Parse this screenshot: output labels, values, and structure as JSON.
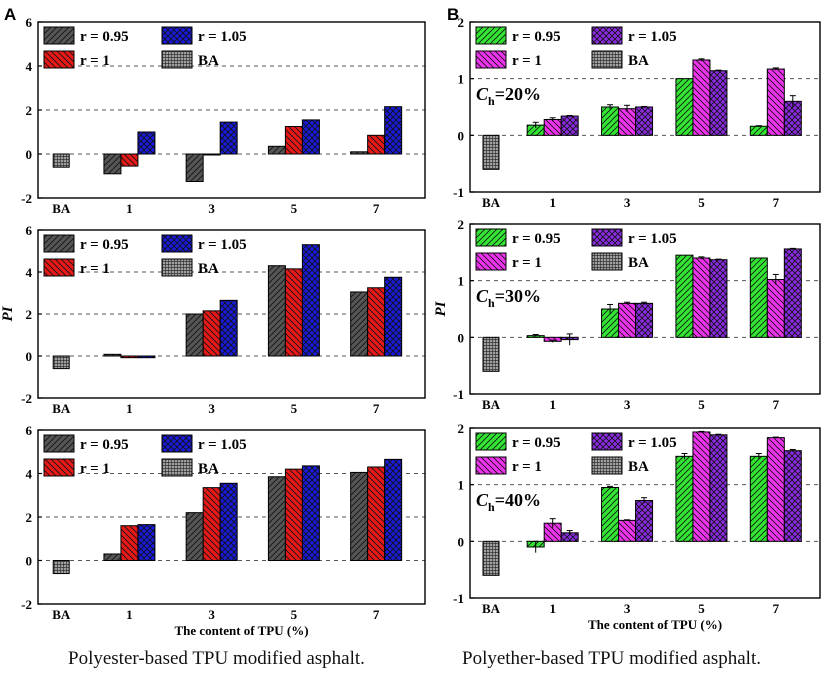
{
  "panel_letters": {
    "left": "A",
    "right": "B"
  },
  "captions": {
    "left": "Polyester-based TPU modified asphalt.",
    "right": "Polyether-based TPU modified asphalt."
  },
  "colors": {
    "r095_left": "#555555",
    "r1_left": "#e61919",
    "r105_left": "#1a1adc",
    "r095_right": "#33e533",
    "r1_right": "#ee33ee",
    "r105_right": "#8a2be2",
    "ba": "#a0a0a0"
  },
  "chart_data": [
    {
      "id": "A1",
      "type": "bar",
      "panel": "A",
      "ylabel": "",
      "xlabel": "",
      "ylim": [
        -2,
        6
      ],
      "yticks": [
        "-2",
        "0",
        "2",
        "4",
        "6"
      ],
      "gridlines": [
        0,
        2,
        4
      ],
      "categories": [
        "BA",
        "1",
        "3",
        "5",
        "7"
      ],
      "ba_value": -0.6,
      "series": [
        {
          "name": "r = 0.95",
          "values": [
            null,
            -0.9,
            -1.25,
            0.35,
            0.1
          ]
        },
        {
          "name": "r = 1",
          "values": [
            null,
            -0.55,
            0.0,
            1.25,
            0.85
          ]
        },
        {
          "name": "r = 1.05",
          "values": [
            null,
            1.0,
            1.45,
            1.55,
            2.15
          ]
        }
      ],
      "legend": [
        "r = 0.95",
        "r = 1.05",
        "r = 1",
        "BA"
      ],
      "annotation": ""
    },
    {
      "id": "A2",
      "type": "bar",
      "panel": "A",
      "ylabel": "PI",
      "xlabel": "",
      "ylim": [
        -2,
        6
      ],
      "yticks": [
        "-2",
        "0",
        "2",
        "4",
        "6"
      ],
      "gridlines": [
        0,
        2,
        4
      ],
      "categories": [
        "BA",
        "1",
        "3",
        "5",
        "7"
      ],
      "ba_value": -0.6,
      "series": [
        {
          "name": "r = 0.95",
          "values": [
            null,
            0.08,
            2.0,
            4.3,
            3.05
          ]
        },
        {
          "name": "r = 1",
          "values": [
            null,
            -0.08,
            2.15,
            4.15,
            3.25
          ]
        },
        {
          "name": "r = 1.05",
          "values": [
            null,
            -0.08,
            2.65,
            5.3,
            3.75
          ]
        }
      ],
      "legend": [
        "r = 0.95",
        "r = 1.05",
        "r = 1",
        "BA"
      ],
      "annotation": ""
    },
    {
      "id": "A3",
      "type": "bar",
      "panel": "A",
      "ylabel": "",
      "xlabel": "The content of TPU  (%)",
      "ylim": [
        -2,
        6
      ],
      "yticks": [
        "-2",
        "0",
        "2",
        "4",
        "6"
      ],
      "gridlines": [
        0,
        2,
        4
      ],
      "categories": [
        "BA",
        "1",
        "3",
        "5",
        "7"
      ],
      "ba_value": -0.6,
      "series": [
        {
          "name": "r = 0.95",
          "values": [
            null,
            0.3,
            2.2,
            3.85,
            4.05
          ]
        },
        {
          "name": "r = 1",
          "values": [
            null,
            1.6,
            3.35,
            4.2,
            4.3
          ]
        },
        {
          "name": "r = 1.05",
          "values": [
            null,
            1.65,
            3.55,
            4.35,
            4.65
          ]
        }
      ],
      "legend": [
        "r = 0.95",
        "r = 1.05",
        "r = 1",
        "BA"
      ],
      "annotation": ""
    },
    {
      "id": "B1",
      "type": "bar",
      "panel": "B",
      "ylabel": "",
      "xlabel": "",
      "ylim": [
        -1,
        2
      ],
      "yticks": [
        "-1",
        "0",
        "1",
        "2"
      ],
      "gridlines": [
        0,
        1
      ],
      "categories": [
        "BA",
        "1",
        "3",
        "5",
        "7"
      ],
      "ba_value": -0.6,
      "series": [
        {
          "name": "r = 0.95",
          "values": [
            null,
            0.18,
            0.5,
            1.0,
            0.16
          ],
          "errors": [
            null,
            0.05,
            0.04,
            0,
            0.01
          ]
        },
        {
          "name": "r = 1",
          "values": [
            null,
            0.28,
            0.47,
            1.33,
            1.17
          ],
          "errors": [
            null,
            0.03,
            0.06,
            0.02,
            0.02
          ]
        },
        {
          "name": "r = 1.05",
          "values": [
            null,
            0.34,
            0.5,
            1.14,
            0.6
          ],
          "errors": [
            null,
            0.01,
            0.01,
            0.01,
            0.1
          ]
        }
      ],
      "legend": [
        "r = 0.95",
        "r = 1.05",
        "r = 1",
        "BA"
      ],
      "annotation": {
        "main": "C",
        "sub": "h",
        "rest": "=20%"
      }
    },
    {
      "id": "B2",
      "type": "bar",
      "panel": "B",
      "ylabel": "PI",
      "xlabel": "",
      "ylim": [
        -1,
        2
      ],
      "yticks": [
        "-1",
        "0",
        "1",
        "2"
      ],
      "gridlines": [
        0,
        1
      ],
      "categories": [
        "BA",
        "1",
        "3",
        "5",
        "7"
      ],
      "ba_value": -0.6,
      "series": [
        {
          "name": "r = 0.95",
          "values": [
            null,
            0.03,
            0.5,
            1.45,
            1.4
          ],
          "errors": [
            null,
            0.02,
            0.08,
            0,
            0
          ]
        },
        {
          "name": "r = 1",
          "values": [
            null,
            -0.07,
            0.6,
            1.4,
            1.02
          ],
          "errors": [
            null,
            0.02,
            0.02,
            0.02,
            0.09
          ]
        },
        {
          "name": "r = 1.05",
          "values": [
            null,
            -0.04,
            0.6,
            1.37,
            1.56
          ],
          "errors": [
            null,
            0.1,
            0.02,
            0.01,
            0.01
          ]
        }
      ],
      "legend": [
        "r = 0.95",
        "r = 1.05",
        "r = 1",
        "BA"
      ],
      "annotation": {
        "main": "C",
        "sub": "h",
        "rest": "=30%"
      }
    },
    {
      "id": "B3",
      "type": "bar",
      "panel": "B",
      "ylabel": "",
      "xlabel": "The content of TPU  (%)",
      "ylim": [
        -1,
        2
      ],
      "yticks": [
        "-1",
        "0",
        "1",
        "2"
      ],
      "gridlines": [
        0,
        1
      ],
      "categories": [
        "BA",
        "1",
        "3",
        "5",
        "7"
      ],
      "ba_value": -0.6,
      "series": [
        {
          "name": "r = 0.95",
          "values": [
            null,
            -0.1,
            0.95,
            1.5,
            1.5
          ],
          "errors": [
            null,
            0.1,
            0.02,
            0.05,
            0.05
          ]
        },
        {
          "name": "r = 1",
          "values": [
            null,
            0.32,
            0.37,
            1.93,
            1.83
          ],
          "errors": [
            null,
            0.08,
            0.01,
            0.01,
            0.01
          ]
        },
        {
          "name": "r = 1.05",
          "values": [
            null,
            0.15,
            0.72,
            1.88,
            1.6
          ],
          "errors": [
            null,
            0.04,
            0.05,
            0.01,
            0.02
          ]
        }
      ],
      "legend": [
        "r = 0.95",
        "r = 1.05",
        "r = 1",
        "BA"
      ],
      "annotation": {
        "main": "C",
        "sub": "h",
        "rest": "=40%"
      }
    }
  ]
}
